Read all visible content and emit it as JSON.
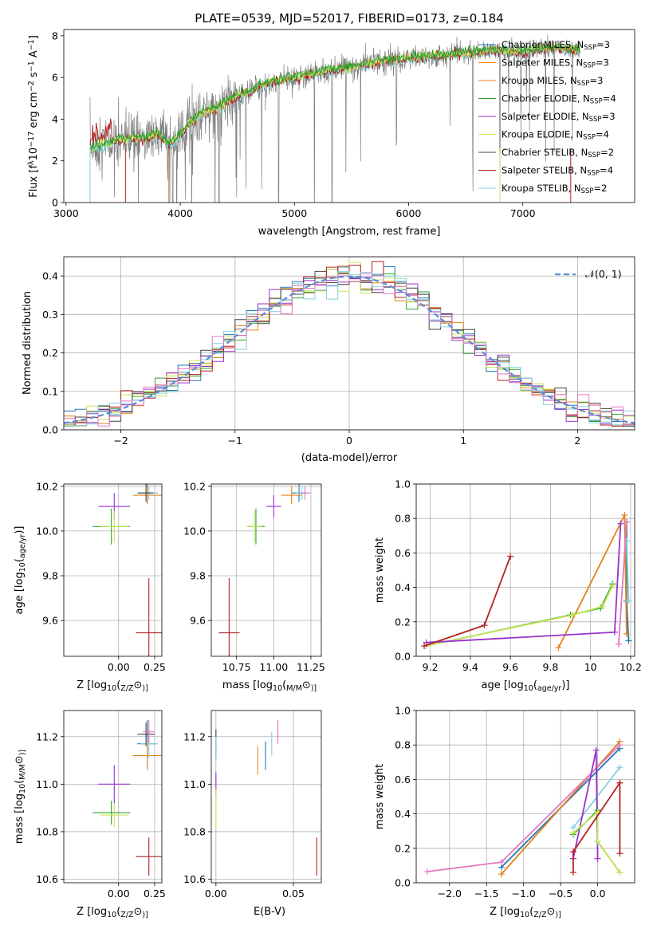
{
  "chart_data": [
    {
      "id": "spectrum",
      "type": "line",
      "title": "PLATE=0539, MJD=52017, FIBERID=0173, z=0.184",
      "xlabel": "wavelength [Angstrom, rest frame]",
      "ylabel": "Flux [f$_\\lambda$10$^{-17}$ erg cm$^{-2}$ s$^{-1}$ A$^{-1}$]",
      "ylabel_parts": [
        "Flux [f",
        "λ",
        "10",
        "−17",
        " erg cm",
        "−2",
        " s",
        "−1",
        " A",
        "−1",
        "]"
      ],
      "xlim": [
        2980,
        7980
      ],
      "ylim": [
        0,
        8.3
      ],
      "xticks": [
        3000,
        4000,
        5000,
        6000,
        7000
      ],
      "yticks": [
        0,
        2,
        4,
        6,
        8
      ],
      "legend_placement": "upper-right",
      "legend": [
        {
          "pre": "Chabrier MILES, N",
          "sub": "SSP",
          "post": "=3",
          "color": "#1f77b4"
        },
        {
          "pre": "Salpeter MILES, N",
          "sub": "SSP",
          "post": "=3",
          "color": "#ff7f0e"
        },
        {
          "pre": "Kroupa MILES, N",
          "sub": "SSP",
          "post": "=3",
          "color": "#e0821e"
        },
        {
          "pre": "Chabrier ELODIE, N",
          "sub": "SSP",
          "post": "=4",
          "color": "#2ca02c"
        },
        {
          "pre": "Salpeter ELODIE, N",
          "sub": "SSP",
          "post": "=3",
          "color": "#9932cc"
        },
        {
          "pre": "Kroupa ELODIE, N",
          "sub": "SSP",
          "post": "=4",
          "color": "#c8e65a"
        },
        {
          "pre": "Chabrier STELIB, N",
          "sub": "SSP",
          "post": "=2",
          "color": "#444444"
        },
        {
          "pre": "Salpeter STELIB, N",
          "sub": "SSP",
          "post": "=4",
          "color": "#b22222"
        },
        {
          "pre": "Kroupa STELIB, N",
          "sub": "SSP",
          "post": "=2",
          "color": "#87cfe0"
        }
      ],
      "data_color": "#7f7f7f",
      "continuum": {
        "x": [
          3200,
          3300,
          3400,
          3500,
          3600,
          3700,
          3800,
          3900,
          4000,
          4100,
          4200,
          4300,
          4400,
          4500,
          4600,
          4700,
          4800,
          4900,
          5000,
          5200,
          5400,
          5600,
          5800,
          6000,
          6200,
          6400,
          6600,
          6800,
          7000,
          7200,
          7500
        ],
        "y": [
          2.6,
          2.7,
          2.9,
          3.0,
          3.1,
          3.1,
          3.3,
          2.8,
          3.2,
          3.9,
          4.3,
          4.5,
          4.8,
          5.1,
          5.3,
          5.6,
          5.8,
          5.9,
          6.0,
          6.2,
          6.4,
          6.6,
          6.8,
          6.9,
          7.0,
          7.1,
          7.2,
          7.3,
          7.2,
          7.4,
          7.3
        ]
      },
      "absorption_lines": [
        3934,
        3969,
        4101,
        4305,
        4340,
        4713,
        4861,
        5175,
        5330,
        5893,
        6563,
        6800,
        7200
      ]
    },
    {
      "id": "residuals",
      "type": "line",
      "title": "",
      "xlabel": "(data-model)/error",
      "ylabel": "Normed distribution",
      "xlim": [
        -2.5,
        2.5
      ],
      "ylim": [
        0,
        0.45
      ],
      "xticks": [
        -2,
        -1,
        0,
        1,
        2
      ],
      "yticks": [
        0.0,
        0.1,
        0.2,
        0.3,
        0.4
      ],
      "grid": true,
      "legend_placement": "upper-right",
      "legend_label": "𝒩(0, 1)",
      "normal_color": "#5b8bdb",
      "bin_width": 0.1,
      "hist_colors": [
        "#1f77b4",
        "#e0821e",
        "#2ca02c",
        "#9932cc",
        "#c8e65a",
        "#444444",
        "#b22222",
        "#87cfe0",
        "#e377c2"
      ]
    },
    {
      "id": "age-vs-Z",
      "type": "scatter",
      "xlabel": "Z [log$_{10}$(Z/Z$_\\odot$)]",
      "xlabel_parts": [
        "Z [log",
        "10",
        "(",
        "Z/Z",
        "⊙",
        ")]"
      ],
      "ylabel": "age  [log$_{10}$(age/yr)]",
      "ylabel_parts": [
        "age  [log",
        "10",
        "(",
        "age/yr",
        ")]"
      ],
      "xlim": [
        -0.38,
        0.3
      ],
      "ylim": [
        9.44,
        10.21
      ],
      "xticks": [
        0.0,
        0.25
      ],
      "xticklabels": [
        "0.00",
        "0.25"
      ],
      "yticks": [
        9.6,
        9.8,
        10.0,
        10.2
      ],
      "grid": true,
      "points": [
        {
          "x": 0.2,
          "y": 10.17,
          "xerr": 0.07,
          "yerr": 0.05,
          "color": "#1f77b4"
        },
        {
          "x": 0.2,
          "y": 10.16,
          "xerr": 0.1,
          "yerr": 0.04,
          "color": "#e0821e"
        },
        {
          "x": 0.21,
          "y": 10.17,
          "xerr": 0.06,
          "yerr": 0.03,
          "color": "#87cfe0"
        },
        {
          "x": 0.19,
          "y": 10.17,
          "xerr": 0.05,
          "yerr": 0.04,
          "color": "#444444"
        },
        {
          "x": -0.03,
          "y": 10.11,
          "xerr": 0.11,
          "yerr": 0.06,
          "color": "#9932cc"
        },
        {
          "x": -0.05,
          "y": 10.02,
          "xerr": 0.13,
          "yerr": 0.08,
          "color": "#2ca02c"
        },
        {
          "x": -0.03,
          "y": 10.02,
          "xerr": 0.1,
          "yerr": 0.07,
          "color": "#c8e65a"
        },
        {
          "x": 0.21,
          "y": 9.545,
          "xerr": 0.09,
          "yerr": 0.245,
          "color": "#b22222"
        }
      ]
    },
    {
      "id": "age-vs-mass",
      "type": "scatter",
      "xlabel": "mass [log$_{10}$(M/M$_\\odot$)]",
      "xlabel_parts": [
        "mass [log",
        "10",
        "(",
        "M/M",
        "⊙",
        ")]"
      ],
      "ylabel": "",
      "xlim": [
        10.58,
        11.32
      ],
      "ylim": [
        9.44,
        10.21
      ],
      "xticks": [
        10.75,
        11.0,
        11.25
      ],
      "xticklabels": [
        "10.75",
        "11.00",
        "11.25"
      ],
      "yticks": [
        9.6,
        9.8,
        10.0,
        10.2
      ],
      "grid": true,
      "points": [
        {
          "x": 11.17,
          "y": 10.17,
          "xerr": 0.05,
          "yerr": 0.04,
          "color": "#1f77b4"
        },
        {
          "x": 11.12,
          "y": 10.16,
          "xerr": 0.07,
          "yerr": 0.04,
          "color": "#e0821e"
        },
        {
          "x": 11.19,
          "y": 10.17,
          "xerr": 0.04,
          "yerr": 0.03,
          "color": "#87cfe0"
        },
        {
          "x": 11.21,
          "y": 10.17,
          "xerr": 0.04,
          "yerr": 0.03,
          "color": "#e377c2"
        },
        {
          "x": 11.0,
          "y": 10.11,
          "xerr": 0.05,
          "yerr": 0.05,
          "color": "#9932cc"
        },
        {
          "x": 10.88,
          "y": 10.02,
          "xerr": 0.06,
          "yerr": 0.08,
          "color": "#2ca02c"
        },
        {
          "x": 10.87,
          "y": 10.02,
          "xerr": 0.05,
          "yerr": 0.07,
          "color": "#c8e65a"
        },
        {
          "x": 10.7,
          "y": 9.545,
          "xerr": 0.07,
          "yerr": 0.245,
          "color": "#b22222"
        }
      ]
    },
    {
      "id": "weight-vs-age",
      "type": "line",
      "xlabel": "age  [log$_{10}$(age/yr)]",
      "xlabel_parts": [
        "age  [log",
        "10",
        "(",
        "age/yr",
        ")]"
      ],
      "ylabel": "mass weight",
      "xlim": [
        9.13,
        10.22
      ],
      "ylim": [
        0,
        1.0
      ],
      "xticks": [
        9.2,
        9.4,
        9.6,
        9.8,
        10.0,
        10.2
      ],
      "yticks": [
        0.0,
        0.2,
        0.4,
        0.6,
        0.8,
        1.0
      ],
      "grid": true,
      "series": [
        {
          "color": "#1f77b4",
          "x": [
            10.18,
            10.18,
            10.19
          ],
          "y": [
            0.78,
            0.32,
            0.09
          ]
        },
        {
          "color": "#e0821e",
          "x": [
            9.84,
            10.17,
            10.18
          ],
          "y": [
            0.05,
            0.82,
            0.13
          ]
        },
        {
          "color": "#2ca02c",
          "x": [
            9.18,
            9.9,
            10.05,
            10.11
          ],
          "y": [
            0.06,
            0.24,
            0.28,
            0.42
          ]
        },
        {
          "color": "#c8e65a",
          "x": [
            9.18,
            9.91,
            10.06,
            10.11
          ],
          "y": [
            0.06,
            0.24,
            0.29,
            0.41
          ]
        },
        {
          "color": "#9932cc",
          "x": [
            9.18,
            10.12,
            10.15
          ],
          "y": [
            0.08,
            0.14,
            0.77
          ]
        },
        {
          "color": "#b22222",
          "x": [
            9.17,
            9.47,
            9.6
          ],
          "y": [
            0.06,
            0.18,
            0.58
          ]
        },
        {
          "color": "#87cfe0",
          "x": [
            10.18,
            10.19
          ],
          "y": [
            0.67,
            0.32
          ]
        },
        {
          "color": "#e377c2",
          "x": [
            10.14,
            10.18
          ],
          "y": [
            0.07,
            0.78
          ]
        }
      ]
    },
    {
      "id": "mass-vs-Z",
      "type": "scatter",
      "xlabel": "Z [log$_{10}$(Z/Z$_\\odot$)]",
      "xlabel_parts": [
        "Z [log",
        "10",
        "(",
        "Z/Z",
        "⊙",
        ")]"
      ],
      "ylabel": "mass [log$_{10}$(M/M$_\\odot$)]",
      "ylabel_parts": [
        "mass [log",
        "10",
        "(",
        "M/M",
        "⊙",
        ")]"
      ],
      "xlim": [
        -0.38,
        0.3
      ],
      "ylim": [
        10.585,
        11.31
      ],
      "xticks": [
        0.0,
        0.25
      ],
      "xticklabels": [
        "0.00",
        "0.25"
      ],
      "yticks": [
        10.6,
        10.8,
        11.0,
        11.2
      ],
      "grid": true,
      "points": [
        {
          "x": 0.2,
          "y": 11.17,
          "xerr": 0.07,
          "yerr": 0.1,
          "color": "#1f77b4"
        },
        {
          "x": 0.2,
          "y": 11.12,
          "xerr": 0.1,
          "yerr": 0.06,
          "color": "#e0821e"
        },
        {
          "x": 0.21,
          "y": 11.17,
          "xerr": 0.06,
          "yerr": 0.06,
          "color": "#87cfe0"
        },
        {
          "x": 0.19,
          "y": 11.21,
          "xerr": 0.06,
          "yerr": 0.05,
          "color": "#444444"
        },
        {
          "x": 0.21,
          "y": 11.22,
          "xerr": 0.04,
          "yerr": 0.05,
          "color": "#e377c2"
        },
        {
          "x": -0.03,
          "y": 11.0,
          "xerr": 0.11,
          "yerr": 0.08,
          "color": "#9932cc"
        },
        {
          "x": -0.05,
          "y": 10.88,
          "xerr": 0.13,
          "yerr": 0.05,
          "color": "#2ca02c"
        },
        {
          "x": -0.03,
          "y": 10.87,
          "xerr": 0.1,
          "yerr": 0.05,
          "color": "#c8e65a"
        },
        {
          "x": 0.21,
          "y": 10.695,
          "xerr": 0.09,
          "yerr": 0.08,
          "color": "#b22222"
        }
      ]
    },
    {
      "id": "mass-vs-EBV",
      "type": "scatter",
      "xlabel": "E(B-V)",
      "ylabel": "",
      "xlim": [
        -0.003,
        0.068
      ],
      "ylim": [
        10.585,
        11.31
      ],
      "xticks": [
        0.0,
        0.05
      ],
      "xticklabels": [
        "0.00",
        "0.05"
      ],
      "yticks": [
        10.6,
        10.8,
        11.0,
        11.2
      ],
      "grid": true,
      "points": [
        {
          "x": 0.0,
          "y": 11.17,
          "yerr": 0.06,
          "color": "#444444"
        },
        {
          "x": 0.0,
          "y": 11.0,
          "yerr": 0.05,
          "color": "#9932cc"
        },
        {
          "x": 0.0,
          "y": 10.9,
          "yerr": 0.08,
          "color": "#c8e65a"
        },
        {
          "x": 0.0,
          "y": 11.15,
          "yerr": 0.05,
          "color": "#87cfe0"
        },
        {
          "x": 0.027,
          "y": 11.1,
          "yerr": 0.06,
          "color": "#e0821e"
        },
        {
          "x": 0.032,
          "y": 11.12,
          "yerr": 0.06,
          "color": "#1f77b4"
        },
        {
          "x": 0.036,
          "y": 11.17,
          "yerr": 0.05,
          "color": "#87cfe0"
        },
        {
          "x": 0.04,
          "y": 11.22,
          "yerr": 0.05,
          "color": "#e377c2"
        },
        {
          "x": 0.065,
          "y": 10.695,
          "yerr": 0.08,
          "color": "#b22222"
        }
      ]
    },
    {
      "id": "weight-vs-Z",
      "type": "line",
      "xlabel": "Z [log$_{10}$(Z/Z$_\\odot$)]",
      "xlabel_parts": [
        "Z [log",
        "10",
        "(",
        "Z/Z",
        "⊙",
        ")]"
      ],
      "ylabel": "mass weight",
      "xlim": [
        -2.45,
        0.5
      ],
      "ylim": [
        0,
        1.0
      ],
      "xticks": [
        -2.0,
        -1.5,
        -1.0,
        -0.5,
        0.0
      ],
      "xticklabels": [
        "−2.0",
        "−1.5",
        "−1.0",
        "−0.5",
        "0.0"
      ],
      "yticks": [
        0.0,
        0.2,
        0.4,
        0.6,
        0.8,
        1.0
      ],
      "grid": true,
      "series": [
        {
          "color": "#1f77b4",
          "x": [
            -1.3,
            0.3
          ],
          "y": [
            0.09,
            0.78
          ]
        },
        {
          "color": "#e0821e",
          "x": [
            -1.3,
            0.3
          ],
          "y": [
            0.05,
            0.82
          ]
        },
        {
          "color": "#87cfe0",
          "x": [
            -0.33,
            0.3
          ],
          "y": [
            0.32,
            0.67
          ]
        },
        {
          "color": "#e377c2",
          "x": [
            -2.3,
            -1.3,
            0.3
          ],
          "y": [
            0.065,
            0.12,
            0.8
          ]
        },
        {
          "color": "#9932cc",
          "x": [
            -0.33,
            -0.02,
            0.0
          ],
          "y": [
            0.14,
            0.77,
            0.14
          ]
        },
        {
          "color": "#2ca02c",
          "x": [
            -0.33,
            0.0,
            0.0,
            0.3
          ],
          "y": [
            0.28,
            0.42,
            0.24,
            0.06
          ]
        },
        {
          "color": "#c8e65a",
          "x": [
            -0.33,
            0.0,
            0.0,
            0.3
          ],
          "y": [
            0.29,
            0.41,
            0.24,
            0.06
          ]
        },
        {
          "color": "#b22222",
          "x": [
            -0.33,
            -0.33,
            0.3,
            0.3
          ],
          "y": [
            0.06,
            0.18,
            0.58,
            0.17
          ]
        }
      ]
    }
  ]
}
